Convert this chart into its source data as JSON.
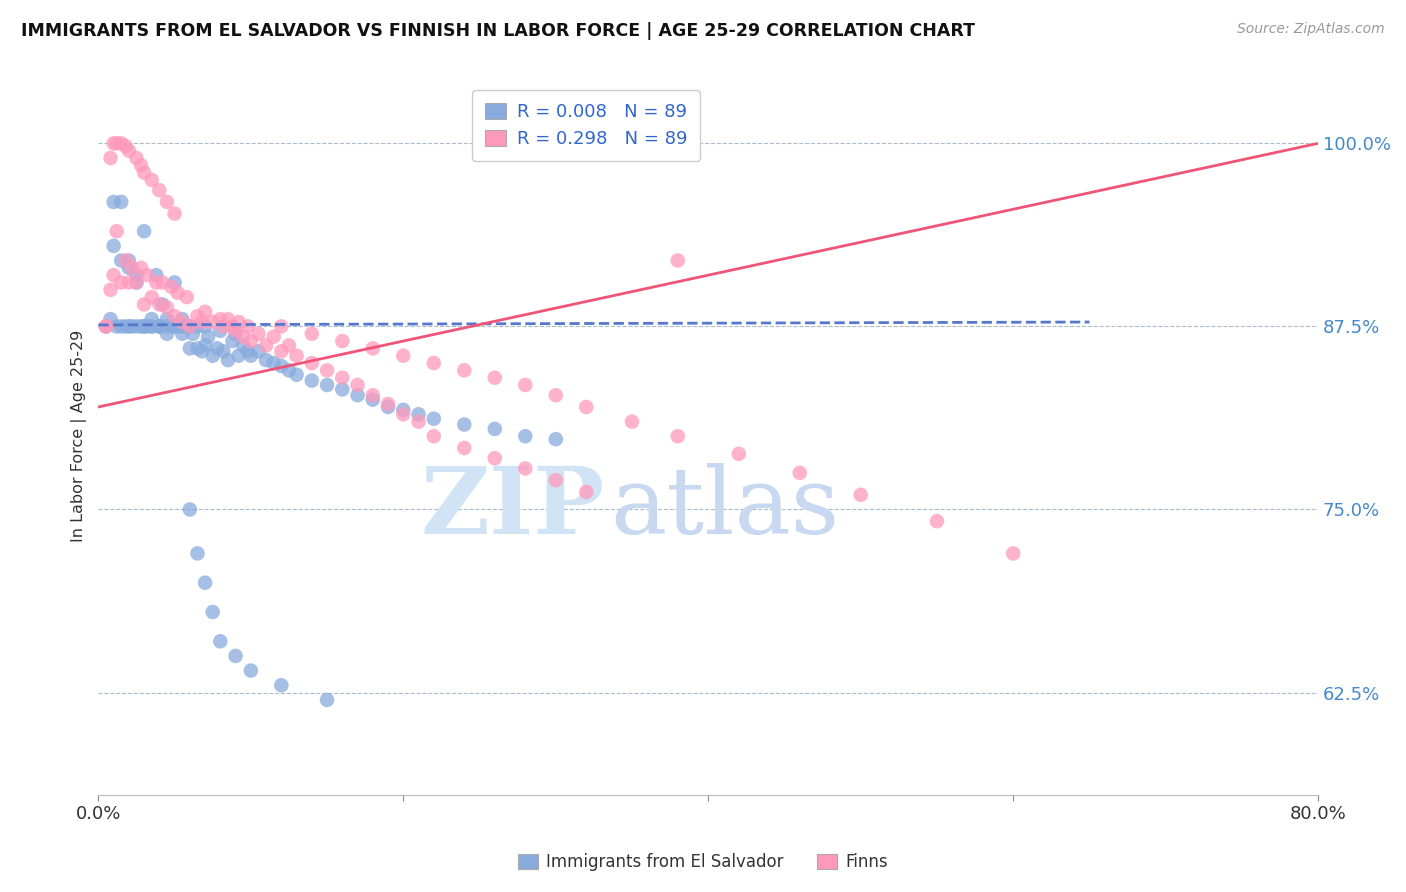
{
  "title": "IMMIGRANTS FROM EL SALVADOR VS FINNISH IN LABOR FORCE | AGE 25-29 CORRELATION CHART",
  "source_text": "Source: ZipAtlas.com",
  "ylabel": "In Labor Force | Age 25-29",
  "ytick_labels": [
    "62.5%",
    "75.0%",
    "87.5%",
    "100.0%"
  ],
  "ytick_values": [
    0.625,
    0.75,
    0.875,
    1.0
  ],
  "xlim": [
    0.0,
    0.8
  ],
  "ylim": [
    0.555,
    1.045
  ],
  "legend_r_blue": "R = 0.008",
  "legend_n_blue": "N = 89",
  "legend_r_pink": "R = 0.298",
  "legend_n_pink": "N = 89",
  "color_blue": "#88AADD",
  "color_pink": "#FF99BB",
  "trendline_blue_color": "#5577CC",
  "trendline_pink_color": "#EE5577",
  "legend_label_blue": "Immigrants from El Salvador",
  "legend_label_pink": "Finns",
  "watermark_zip": "ZIP",
  "watermark_atlas": "atlas",
  "watermark_color_zip": "#D0E4F5",
  "watermark_color_atlas": "#C8D8F0",
  "blue_scatter_x": [
    0.005,
    0.008,
    0.01,
    0.012,
    0.015,
    0.015,
    0.018,
    0.02,
    0.02,
    0.022,
    0.025,
    0.025,
    0.028,
    0.03,
    0.03,
    0.032,
    0.035,
    0.035,
    0.038,
    0.04,
    0.04,
    0.042,
    0.045,
    0.045,
    0.048,
    0.05,
    0.05,
    0.052,
    0.055,
    0.055,
    0.058,
    0.06,
    0.06,
    0.062,
    0.065,
    0.065,
    0.068,
    0.07,
    0.07,
    0.072,
    0.075,
    0.078,
    0.08,
    0.082,
    0.085,
    0.088,
    0.09,
    0.092,
    0.095,
    0.098,
    0.1,
    0.105,
    0.11,
    0.115,
    0.12,
    0.125,
    0.13,
    0.14,
    0.15,
    0.16,
    0.17,
    0.18,
    0.19,
    0.2,
    0.21,
    0.22,
    0.24,
    0.26,
    0.28,
    0.3,
    0.01,
    0.015,
    0.02,
    0.025,
    0.03,
    0.035,
    0.04,
    0.045,
    0.05,
    0.055,
    0.06,
    0.065,
    0.07,
    0.075,
    0.08,
    0.09,
    0.1,
    0.12,
    0.15
  ],
  "blue_scatter_y": [
    0.875,
    0.88,
    0.96,
    0.875,
    0.875,
    0.96,
    0.875,
    0.875,
    0.92,
    0.875,
    0.875,
    0.91,
    0.875,
    0.875,
    0.94,
    0.875,
    0.875,
    0.88,
    0.91,
    0.875,
    0.875,
    0.89,
    0.87,
    0.88,
    0.875,
    0.875,
    0.905,
    0.875,
    0.87,
    0.88,
    0.875,
    0.86,
    0.875,
    0.87,
    0.86,
    0.875,
    0.858,
    0.862,
    0.875,
    0.868,
    0.855,
    0.86,
    0.872,
    0.858,
    0.852,
    0.865,
    0.87,
    0.855,
    0.862,
    0.858,
    0.855,
    0.858,
    0.852,
    0.85,
    0.848,
    0.845,
    0.842,
    0.838,
    0.835,
    0.832,
    0.828,
    0.825,
    0.82,
    0.818,
    0.815,
    0.812,
    0.808,
    0.805,
    0.8,
    0.798,
    0.93,
    0.92,
    0.915,
    0.905,
    0.875,
    0.875,
    0.875,
    0.875,
    0.875,
    0.875,
    0.75,
    0.72,
    0.7,
    0.68,
    0.66,
    0.65,
    0.64,
    0.63,
    0.62
  ],
  "pink_scatter_x": [
    0.005,
    0.008,
    0.01,
    0.012,
    0.015,
    0.018,
    0.02,
    0.022,
    0.025,
    0.028,
    0.03,
    0.032,
    0.035,
    0.038,
    0.04,
    0.042,
    0.045,
    0.048,
    0.05,
    0.052,
    0.055,
    0.058,
    0.06,
    0.065,
    0.068,
    0.07,
    0.075,
    0.08,
    0.082,
    0.085,
    0.088,
    0.09,
    0.092,
    0.095,
    0.098,
    0.1,
    0.105,
    0.11,
    0.115,
    0.12,
    0.125,
    0.13,
    0.14,
    0.15,
    0.16,
    0.17,
    0.18,
    0.19,
    0.2,
    0.21,
    0.22,
    0.24,
    0.26,
    0.28,
    0.3,
    0.32,
    0.005,
    0.008,
    0.01,
    0.012,
    0.015,
    0.018,
    0.02,
    0.025,
    0.028,
    0.03,
    0.035,
    0.04,
    0.045,
    0.05,
    0.12,
    0.14,
    0.16,
    0.18,
    0.2,
    0.22,
    0.24,
    0.26,
    0.28,
    0.3,
    0.32,
    0.35,
    0.38,
    0.42,
    0.46,
    0.5,
    0.55,
    0.6,
    0.38
  ],
  "pink_scatter_y": [
    0.875,
    0.9,
    0.91,
    0.94,
    0.905,
    0.92,
    0.905,
    0.915,
    0.905,
    0.915,
    0.89,
    0.91,
    0.895,
    0.905,
    0.89,
    0.905,
    0.888,
    0.902,
    0.882,
    0.898,
    0.878,
    0.895,
    0.875,
    0.882,
    0.878,
    0.885,
    0.878,
    0.88,
    0.875,
    0.88,
    0.875,
    0.872,
    0.878,
    0.868,
    0.875,
    0.865,
    0.87,
    0.862,
    0.868,
    0.858,
    0.862,
    0.855,
    0.85,
    0.845,
    0.84,
    0.835,
    0.828,
    0.822,
    0.815,
    0.81,
    0.8,
    0.792,
    0.785,
    0.778,
    0.77,
    0.762,
    0.875,
    0.99,
    1.0,
    1.0,
    1.0,
    0.998,
    0.995,
    0.99,
    0.985,
    0.98,
    0.975,
    0.968,
    0.96,
    0.952,
    0.875,
    0.87,
    0.865,
    0.86,
    0.855,
    0.85,
    0.845,
    0.84,
    0.835,
    0.828,
    0.82,
    0.81,
    0.8,
    0.788,
    0.775,
    0.76,
    0.742,
    0.72,
    0.92
  ],
  "trendline_blue_x0": 0.0,
  "trendline_blue_x1": 0.65,
  "trendline_blue_y0": 0.876,
  "trendline_blue_y1": 0.878,
  "trendline_pink_x0": 0.0,
  "trendline_pink_x1": 0.8,
  "trendline_pink_y0": 0.82,
  "trendline_pink_y1": 1.0
}
